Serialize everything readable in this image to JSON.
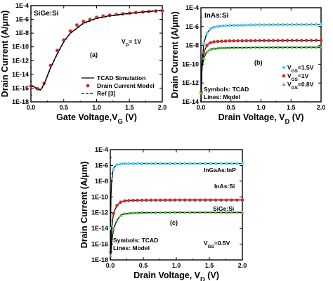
{
  "chart_data": [
    {
      "type": "line",
      "panel_label": "(a)",
      "title": "SiGe:Si",
      "annotation": "V_D= 1V",
      "xlabel": "Gate Voltage,V_G (V)",
      "ylabel": "Drain Current (A/μm)",
      "xlim": [
        0.0,
        2.0
      ],
      "ylim_log10": [
        -18,
        -4
      ],
      "x_ticks": [
        "0.0",
        "0.5",
        "1.0",
        "1.5",
        "2.0"
      ],
      "y_ticks": [
        "1E-18",
        "1E-16",
        "1E-14",
        "1E-12",
        "1E-10",
        "1E-8",
        "1E-6",
        "1E-4"
      ],
      "legend": {
        "position": "bottom-right",
        "entries": [
          "TCAD Simulation",
          "Drain Current Model",
          "Ref [3]"
        ]
      },
      "series": [
        {
          "name": "TCAD Simulation",
          "style": "solid",
          "color": "#000000",
          "x": [
            0.0,
            0.1,
            0.15,
            0.2,
            0.3,
            0.4,
            0.5,
            0.6,
            0.8,
            1.0,
            1.2,
            1.5,
            2.0
          ],
          "y": [
            3e-16,
            8e-17,
            6e-17,
            4e-16,
            1e-13,
            1e-11,
            6e-10,
            1e-08,
            3e-07,
            1.5e-06,
            3.5e-06,
            8e-06,
            2.2e-05
          ]
        },
        {
          "name": "Drain Current Model",
          "style": "markers",
          "color": "#d42a2a",
          "x": [
            0.0,
            0.1,
            0.2,
            0.3,
            0.4,
            0.5,
            0.6,
            0.7,
            0.8,
            0.9,
            1.0,
            1.1,
            1.2,
            1.3,
            1.4,
            1.5,
            1.6,
            1.7,
            1.8,
            1.9,
            2.0
          ],
          "y": [
            2e-16,
            8e-17,
            5e-16,
            2e-13,
            3e-11,
            1e-09,
            2e-08,
            1.5e-07,
            5e-07,
            1e-06,
            2e-06,
            3e-06,
            4e-06,
            5e-06,
            6.5e-06,
            8e-06,
            1e-05,
            1.2e-05,
            1.4e-05,
            1.6e-05,
            1.8e-05
          ]
        },
        {
          "name": "Ref [3]",
          "style": "dashed",
          "color": "#000000",
          "x": [
            0.0,
            0.1,
            0.15,
            0.2,
            0.3,
            0.4,
            0.5,
            0.6,
            0.8,
            1.0,
            1.2,
            1.5,
            2.0
          ],
          "y": [
            2.5e-16,
            7e-17,
            5e-17,
            3e-16,
            8e-14,
            8e-12,
            5e-10,
            9e-09,
            2.5e-07,
            1.3e-06,
            3e-06,
            7e-06,
            2e-05
          ]
        }
      ]
    },
    {
      "type": "line",
      "panel_label": "(b)",
      "title": "InAs:Si",
      "xlabel": "Drain Voltage, V_D (V)",
      "ylabel": "Drain Current (A/μm)",
      "xlim": [
        0.0,
        2.0
      ],
      "ylim_log10": [
        -14,
        -4
      ],
      "x_ticks": [
        "0.0",
        "0.5",
        "1.0",
        "1.5",
        "2.0"
      ],
      "y_ticks": [
        "1E-14",
        "1E-12",
        "1E-10",
        "1E-8",
        "1E-6",
        "1E-4"
      ],
      "notes": [
        "Symbols: TCAD",
        "Lines:    Model"
      ],
      "legend": {
        "position": "bottom-right",
        "entries": [
          "V_GS=1.5V",
          "V_GS=1V",
          "V_GS=0.8V"
        ]
      },
      "series": [
        {
          "name": "V_GS=1.5V",
          "color": "#5ad7f0",
          "marker": "circle",
          "x": [
            0.0,
            0.02,
            0.05,
            0.1,
            0.15,
            0.2,
            0.3,
            0.5,
            0.8,
            1.0,
            1.5,
            2.0
          ],
          "model_y": [
            1e-14,
            2e-10,
            2e-08,
            2e-07,
            5e-07,
            8e-07,
            1.1e-06,
            1.3e-06,
            1.45e-06,
            1.5e-06,
            1.6e-06,
            1.65e-06
          ]
        },
        {
          "name": "V_GS=1V",
          "color": "#d42a2a",
          "marker": "circle",
          "x": [
            0.0,
            0.02,
            0.05,
            0.1,
            0.15,
            0.2,
            0.3,
            0.5,
            0.8,
            1.0,
            1.5,
            2.0
          ],
          "model_y": [
            1e-14,
            1e-10,
            2e-09,
            1e-08,
            1.8e-08,
            2.3e-08,
            2.7e-08,
            3e-08,
            3.1e-08,
            3.2e-08,
            3.3e-08,
            3.4e-08
          ]
        },
        {
          "name": "V_GS=0.8V",
          "color": "#55c43a",
          "marker": "triangle",
          "x": [
            0.0,
            0.02,
            0.05,
            0.1,
            0.15,
            0.2,
            0.3,
            0.5,
            0.8,
            1.0,
            1.5,
            2.0
          ],
          "model_y": [
            1e-14,
            5e-11,
            5e-10,
            2e-09,
            3.5e-09,
            4.5e-09,
            5.3e-09,
            5.8e-09,
            6.1e-09,
            6.2e-09,
            6.3e-09,
            6.4e-09
          ]
        }
      ]
    },
    {
      "type": "line",
      "panel_label": "(c)",
      "xlabel": "Drain Voltage, V_D (V)",
      "ylabel": "Drain Current (A/μm)",
      "xlim": [
        0.0,
        2.0
      ],
      "ylim_log10": [
        -18,
        -4
      ],
      "x_ticks": [
        "0.0",
        "0.5",
        "1.0",
        "1.5",
        "2.0"
      ],
      "y_ticks": [
        "1E-18",
        "1E-16",
        "1E-14",
        "1E-12",
        "1E-10",
        "1E-8",
        "1E-6",
        "1E-4"
      ],
      "notes": [
        "Symbols: TCAD",
        "Lines:      Model"
      ],
      "annotation": "V_GS=0.5V",
      "series": [
        {
          "name": "InGaAs:InP",
          "color": "#5ad7f0",
          "marker": "circle",
          "x": [
            0.0,
            0.01,
            0.02,
            0.04,
            0.06,
            0.1,
            0.15,
            0.2,
            0.3,
            0.5,
            1.0,
            1.5,
            2.0
          ],
          "model_y": [
            1e-18,
            1e-10,
            1e-08,
            2e-07,
            6e-07,
            1.2e-06,
            1.5e-06,
            1.6e-06,
            1.65e-06,
            1.7e-06,
            1.7e-06,
            1.75e-06,
            1.75e-06
          ]
        },
        {
          "name": "InAs:Si",
          "color": "#d42a2a",
          "marker": "circle",
          "x": [
            0.0,
            0.02,
            0.05,
            0.1,
            0.15,
            0.2,
            0.3,
            0.5,
            1.0,
            1.5,
            2.0
          ],
          "model_y": [
            1e-18,
            1e-14,
            1e-12,
            8e-12,
            2e-11,
            3e-11,
            3.5e-11,
            3.8e-11,
            4e-11,
            4e-11,
            4e-11
          ]
        },
        {
          "name": "SiGe:Si",
          "color": "#55c43a",
          "marker": "triangle",
          "x": [
            0.0,
            0.02,
            0.05,
            0.1,
            0.15,
            0.2,
            0.3,
            0.5,
            1.0,
            1.5,
            2.0
          ],
          "model_y": [
            1e-18,
            1e-16,
            1e-14,
            1e-13,
            4e-13,
            7e-13,
            9e-13,
            1e-12,
            1.1e-12,
            1.1e-12,
            1.1e-12
          ]
        }
      ]
    }
  ]
}
